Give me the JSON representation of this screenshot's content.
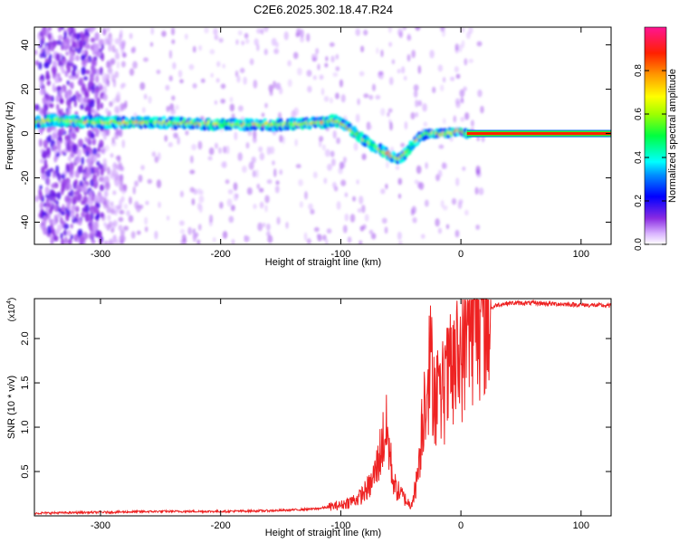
{
  "title": "C2E6.2025.302.18.47.R24",
  "chart_data": [
    {
      "type": "heatmap",
      "xlabel": "Height of straight line (km)",
      "ylabel": "Frequency (Hz)",
      "xlim": [
        -355,
        125
      ],
      "ylim": [
        -50,
        48
      ],
      "xticks": [
        -300,
        -200,
        -100,
        0,
        100
      ],
      "xtick_labels": [
        "-300",
        "-200",
        "-100",
        "0",
        "100"
      ],
      "yticks": [
        -40,
        -20,
        0,
        20,
        40
      ],
      "ytick_labels": [
        "-40",
        "-20",
        "0",
        "20",
        "40"
      ],
      "colorbar": {
        "label": "Normalized spectral amplitude",
        "range": [
          0,
          1
        ],
        "ticks": [
          0,
          0.2,
          0.4,
          0.6,
          0.8
        ],
        "tick_labels": [
          "0.0",
          "0.2",
          "0.4",
          "0.6",
          "0.8"
        ]
      },
      "ridge": {
        "x": [
          -355,
          -340,
          -300,
          -250,
          -200,
          -150,
          -115,
          -105,
          -95,
          -85,
          -75,
          -65,
          -58,
          -52,
          -48,
          -42,
          -35,
          -28,
          -20,
          -12,
          -5,
          2,
          5,
          8,
          50,
          125
        ],
        "y": [
          5,
          6,
          5,
          5,
          4,
          4,
          5,
          6,
          3,
          -1,
          -5,
          -8,
          -10,
          -12,
          -10,
          -6,
          -2,
          0,
          0,
          0,
          1,
          1,
          0,
          0,
          0,
          0
        ]
      }
    },
    {
      "type": "line",
      "xlabel": "Height of straight line (km)",
      "ylabel": "SNR (10 * v/v)",
      "exponent_label": "(x10",
      "exponent_power": "4",
      "exponent_close": ")",
      "xlim": [
        -355,
        125
      ],
      "ylim": [
        0,
        2.45
      ],
      "xticks": [
        -300,
        -200,
        -100,
        0,
        100
      ],
      "xtick_labels": [
        "-300",
        "-200",
        "-100",
        "0",
        "100"
      ],
      "yticks": [
        0.5,
        1.0,
        1.5,
        2.0
      ],
      "ytick_labels": [
        "0.5",
        "1.0",
        "1.5",
        "2.0"
      ],
      "series": [
        {
          "name": "SNR",
          "color": "#ee2222",
          "x": [
            -355,
            -300,
            -250,
            -200,
            -150,
            -120,
            -100,
            -85,
            -75,
            -70,
            -65,
            -62,
            -60,
            -57,
            -54,
            -50,
            -46,
            -42,
            -38,
            -35,
            -32,
            -30,
            -28,
            -25,
            -22,
            -18,
            -15,
            -10,
            -5,
            0,
            5,
            10,
            20,
            30,
            40,
            60,
            80,
            100,
            125
          ],
          "y": [
            0.03,
            0.04,
            0.05,
            0.05,
            0.06,
            0.08,
            0.12,
            0.2,
            0.35,
            0.55,
            0.85,
            0.95,
            0.8,
            0.45,
            0.3,
            0.25,
            0.18,
            0.12,
            0.3,
            0.6,
            1.1,
            1.4,
            1.6,
            1.7,
            1.45,
            1.25,
            1.4,
            1.55,
            1.65,
            1.85,
            2.05,
            2.2,
            2.3,
            2.38,
            2.4,
            2.4,
            2.39,
            2.38,
            2.37
          ]
        }
      ]
    }
  ]
}
